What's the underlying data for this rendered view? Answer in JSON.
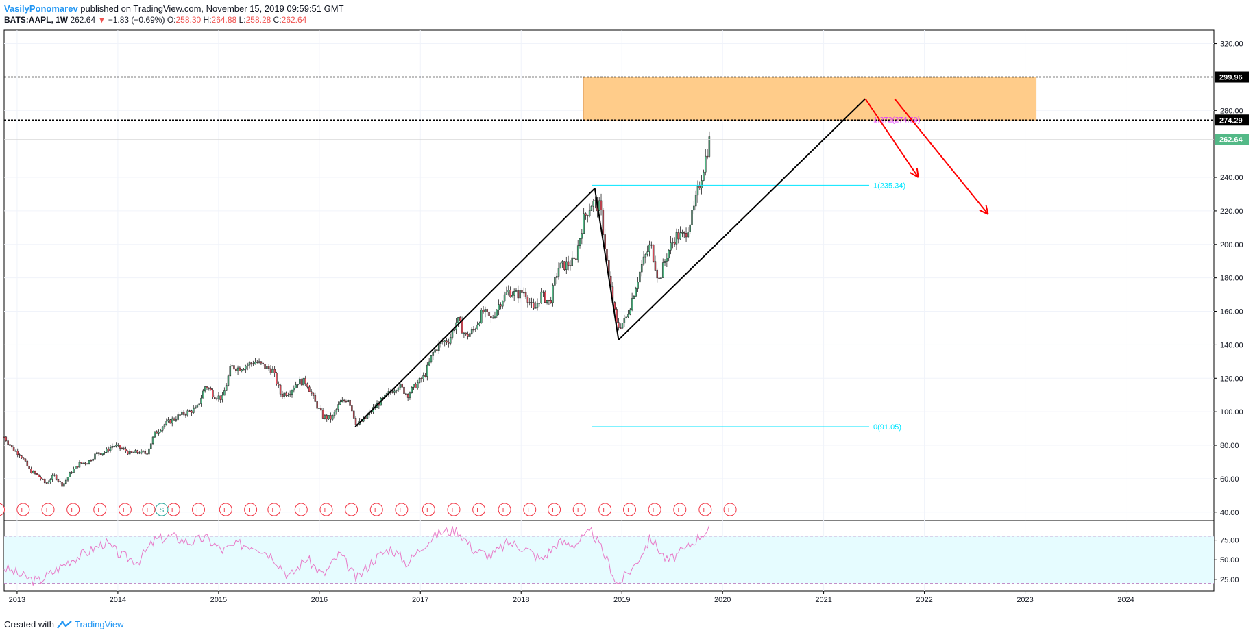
{
  "header": {
    "author": "VasilyPonomarev",
    "published": "published on TradingView.com, November 15, 2019 09:59:51 GMT"
  },
  "quote": {
    "symbol": "BATS:AAPL, 1W",
    "last": "262.64",
    "arrow": "▼",
    "change": "−1.83 (−0.69%)",
    "o_label": "O:",
    "o": "258.30",
    "h_label": "H:",
    "h": "264.88",
    "l_label": "L:",
    "l": "258.28",
    "c_label": "C:",
    "c": "262.64"
  },
  "footer": {
    "created": "Created with",
    "brand": "TradingView"
  },
  "colors": {
    "up": "#53b987",
    "down": "#eb4d5c",
    "zone": "#ffcc8a",
    "fib": "#00e5ff",
    "fib_ext": "#e040fb",
    "arrow": "#ff0000",
    "rsi": "#e879c7",
    "rsi_band": "#e6fcff",
    "earnings": "#f23645",
    "split": "#26a69a",
    "last_price": "#53b987"
  },
  "chart_data": {
    "type": "candlestick",
    "interval": "1W",
    "y_axis": {
      "ticks": [
        "320.00",
        "280.00",
        "240.00",
        "220.00",
        "200.00",
        "180.00",
        "160.00",
        "140.00",
        "120.00",
        "100.00",
        "80.00",
        "60.00",
        "40.00"
      ],
      "range": [
        35,
        328
      ]
    },
    "x_axis": {
      "ticks": [
        "2013",
        "2014",
        "2015",
        "2016",
        "2017",
        "2018",
        "2019",
        "2020",
        "2021",
        "2022",
        "2023",
        "2024"
      ],
      "range": [
        "2012-11-15",
        "2024-11-15"
      ]
    },
    "price_labels": [
      {
        "value": 299.96,
        "text": "299.96",
        "style": "dark"
      },
      {
        "value": 274.29,
        "text": "274.29",
        "style": "dark"
      },
      {
        "value": 262.64,
        "text": "262.64",
        "style": "last"
      }
    ],
    "horizontal_lines": [
      {
        "value": 299.96,
        "style": "dashed"
      },
      {
        "value": 274.29,
        "style": "dashed"
      },
      {
        "value": 262.64,
        "style": "thin"
      }
    ],
    "zone": {
      "from_date": "2018-08-15",
      "to_date": "2023-02-10",
      "low": 274.29,
      "high": 299.96
    },
    "fibonacci": [
      {
        "text": "1.272(274.59)",
        "value": 274.59,
        "from_date": "2018-09-15",
        "to_date": "2021-06-15",
        "color": "fib_ext"
      },
      {
        "text": "1(235.34)",
        "value": 235.34,
        "from_date": "2018-09-15",
        "to_date": "2021-06-15",
        "color": "fib"
      },
      {
        "text": "0(91.05)",
        "value": 91.05,
        "from_date": "2018-09-15",
        "to_date": "2021-06-15",
        "color": "fib"
      }
    ],
    "trend_lines": [
      {
        "from": [
          "2016-05-10",
          91
        ],
        "to": [
          "2018-09-25",
          233.5
        ]
      },
      {
        "from": [
          "2018-09-25",
          233.5
        ],
        "to": [
          "2018-12-20",
          143
        ]
      },
      {
        "from": [
          "2018-12-20",
          143
        ],
        "to": [
          "2021-06-01",
          287
        ]
      }
    ],
    "arrows": [
      {
        "from": [
          "2021-06-01",
          287
        ],
        "to": [
          "2021-12-10",
          240
        ]
      },
      {
        "from": [
          "2021-09-15",
          287
        ],
        "to": [
          "2022-08-20",
          218
        ]
      }
    ],
    "price_path": [
      [
        "2012-11-15",
        85
      ],
      [
        "2012-12-15",
        78
      ],
      [
        "2013-01-15",
        74
      ],
      [
        "2013-02-15",
        65
      ],
      [
        "2013-03-15",
        62
      ],
      [
        "2013-04-15",
        57
      ],
      [
        "2013-05-15",
        62
      ],
      [
        "2013-06-15",
        56
      ],
      [
        "2013-07-15",
        64
      ],
      [
        "2013-08-15",
        69
      ],
      [
        "2013-09-15",
        70
      ],
      [
        "2013-10-15",
        75
      ],
      [
        "2013-11-15",
        76
      ],
      [
        "2013-12-15",
        80
      ],
      [
        "2014-01-15",
        78
      ],
      [
        "2014-02-15",
        75
      ],
      [
        "2014-03-15",
        76
      ],
      [
        "2014-04-15",
        75
      ],
      [
        "2014-05-15",
        87
      ],
      [
        "2014-06-15",
        92
      ],
      [
        "2014-07-15",
        95
      ],
      [
        "2014-08-15",
        98
      ],
      [
        "2014-09-15",
        100
      ],
      [
        "2014-10-15",
        102
      ],
      [
        "2014-11-15",
        116
      ],
      [
        "2014-12-15",
        110
      ],
      [
        "2015-01-15",
        108
      ],
      [
        "2015-02-15",
        127
      ],
      [
        "2015-03-15",
        126
      ],
      [
        "2015-04-15",
        128
      ],
      [
        "2015-05-15",
        130
      ],
      [
        "2015-06-15",
        127
      ],
      [
        "2015-07-15",
        125
      ],
      [
        "2015-08-15",
        110
      ],
      [
        "2015-09-15",
        112
      ],
      [
        "2015-10-15",
        118
      ],
      [
        "2015-11-15",
        118
      ],
      [
        "2015-12-15",
        106
      ],
      [
        "2016-01-15",
        97
      ],
      [
        "2016-02-15",
        96
      ],
      [
        "2016-03-15",
        105
      ],
      [
        "2016-04-15",
        108
      ],
      [
        "2016-05-15",
        92
      ],
      [
        "2016-06-15",
        96
      ],
      [
        "2016-07-15",
        102
      ],
      [
        "2016-08-15",
        107
      ],
      [
        "2016-09-15",
        112
      ],
      [
        "2016-10-15",
        116
      ],
      [
        "2016-11-15",
        110
      ],
      [
        "2016-12-15",
        116
      ],
      [
        "2017-01-15",
        121
      ],
      [
        "2017-02-15",
        135
      ],
      [
        "2017-03-15",
        141
      ],
      [
        "2017-04-15",
        143
      ],
      [
        "2017-05-15",
        155
      ],
      [
        "2017-06-15",
        145
      ],
      [
        "2017-07-15",
        149
      ],
      [
        "2017-08-15",
        160
      ],
      [
        "2017-09-15",
        155
      ],
      [
        "2017-10-15",
        165
      ],
      [
        "2017-11-15",
        172
      ],
      [
        "2017-12-15",
        170
      ],
      [
        "2018-01-15",
        172
      ],
      [
        "2018-02-15",
        160
      ],
      [
        "2018-03-15",
        170
      ],
      [
        "2018-04-15",
        165
      ],
      [
        "2018-05-15",
        186
      ],
      [
        "2018-06-15",
        188
      ],
      [
        "2018-07-15",
        190
      ],
      [
        "2018-08-15",
        215
      ],
      [
        "2018-09-15",
        225
      ],
      [
        "2018-10-15",
        222
      ],
      [
        "2018-11-15",
        180
      ],
      [
        "2018-12-15",
        150
      ],
      [
        "2019-01-15",
        155
      ],
      [
        "2019-02-15",
        172
      ],
      [
        "2019-03-15",
        188
      ],
      [
        "2019-04-15",
        200
      ],
      [
        "2019-05-15",
        178
      ],
      [
        "2019-06-15",
        195
      ],
      [
        "2019-07-15",
        205
      ],
      [
        "2019-08-15",
        205
      ],
      [
        "2019-09-15",
        218
      ],
      [
        "2019-10-15",
        240
      ],
      [
        "2019-11-15",
        262.64
      ]
    ],
    "events": {
      "earnings_label": "E",
      "split_label": "S",
      "split_date": "2014-06-09",
      "earnings_dates": [
        "2012-10-25",
        "2013-01-23",
        "2013-04-23",
        "2013-07-23",
        "2013-10-28",
        "2014-01-27",
        "2014-04-23",
        "2014-07-22",
        "2014-10-20",
        "2015-01-27",
        "2015-04-27",
        "2015-07-21",
        "2015-10-27",
        "2016-01-26",
        "2016-04-26",
        "2016-07-26",
        "2016-10-25",
        "2017-01-31",
        "2017-05-02",
        "2017-08-01",
        "2017-11-02",
        "2018-02-01",
        "2018-05-01",
        "2018-07-31",
        "2018-11-01",
        "2019-01-29",
        "2019-04-30",
        "2019-07-30",
        "2019-10-30",
        "2020-01-28"
      ]
    },
    "rsi": {
      "ticks": [
        "75.00",
        "50.00",
        "25.00"
      ],
      "range": [
        10,
        100
      ],
      "upper": 80,
      "lower": 20,
      "path": [
        [
          "2012-11-15",
          40
        ],
        [
          "2013-01-15",
          30
        ],
        [
          "2013-03-15",
          22
        ],
        [
          "2013-05-15",
          35
        ],
        [
          "2013-07-15",
          50
        ],
        [
          "2013-09-15",
          60
        ],
        [
          "2013-11-15",
          72
        ],
        [
          "2014-01-15",
          55
        ],
        [
          "2014-03-15",
          48
        ],
        [
          "2014-05-15",
          75
        ],
        [
          "2014-07-15",
          80
        ],
        [
          "2014-09-15",
          72
        ],
        [
          "2014-11-15",
          78
        ],
        [
          "2015-01-15",
          62
        ],
        [
          "2015-03-15",
          70
        ],
        [
          "2015-05-15",
          68
        ],
        [
          "2015-07-15",
          55
        ],
        [
          "2015-09-15",
          28
        ],
        [
          "2015-11-15",
          52
        ],
        [
          "2016-01-15",
          30
        ],
        [
          "2016-03-15",
          58
        ],
        [
          "2016-05-15",
          25
        ],
        [
          "2016-07-15",
          50
        ],
        [
          "2016-09-15",
          65
        ],
        [
          "2016-11-15",
          45
        ],
        [
          "2017-01-15",
          70
        ],
        [
          "2017-03-15",
          85
        ],
        [
          "2017-05-15",
          88
        ],
        [
          "2017-07-15",
          62
        ],
        [
          "2017-09-15",
          55
        ],
        [
          "2017-11-15",
          72
        ],
        [
          "2018-01-15",
          65
        ],
        [
          "2018-03-15",
          50
        ],
        [
          "2018-05-15",
          72
        ],
        [
          "2018-07-15",
          70
        ],
        [
          "2018-09-15",
          86
        ],
        [
          "2018-11-15",
          45
        ],
        [
          "2018-12-15",
          18
        ],
        [
          "2019-02-15",
          42
        ],
        [
          "2019-04-15",
          78
        ],
        [
          "2019-06-15",
          48
        ],
        [
          "2019-08-15",
          62
        ],
        [
          "2019-10-15",
          82
        ],
        [
          "2019-11-15",
          90
        ]
      ]
    }
  }
}
